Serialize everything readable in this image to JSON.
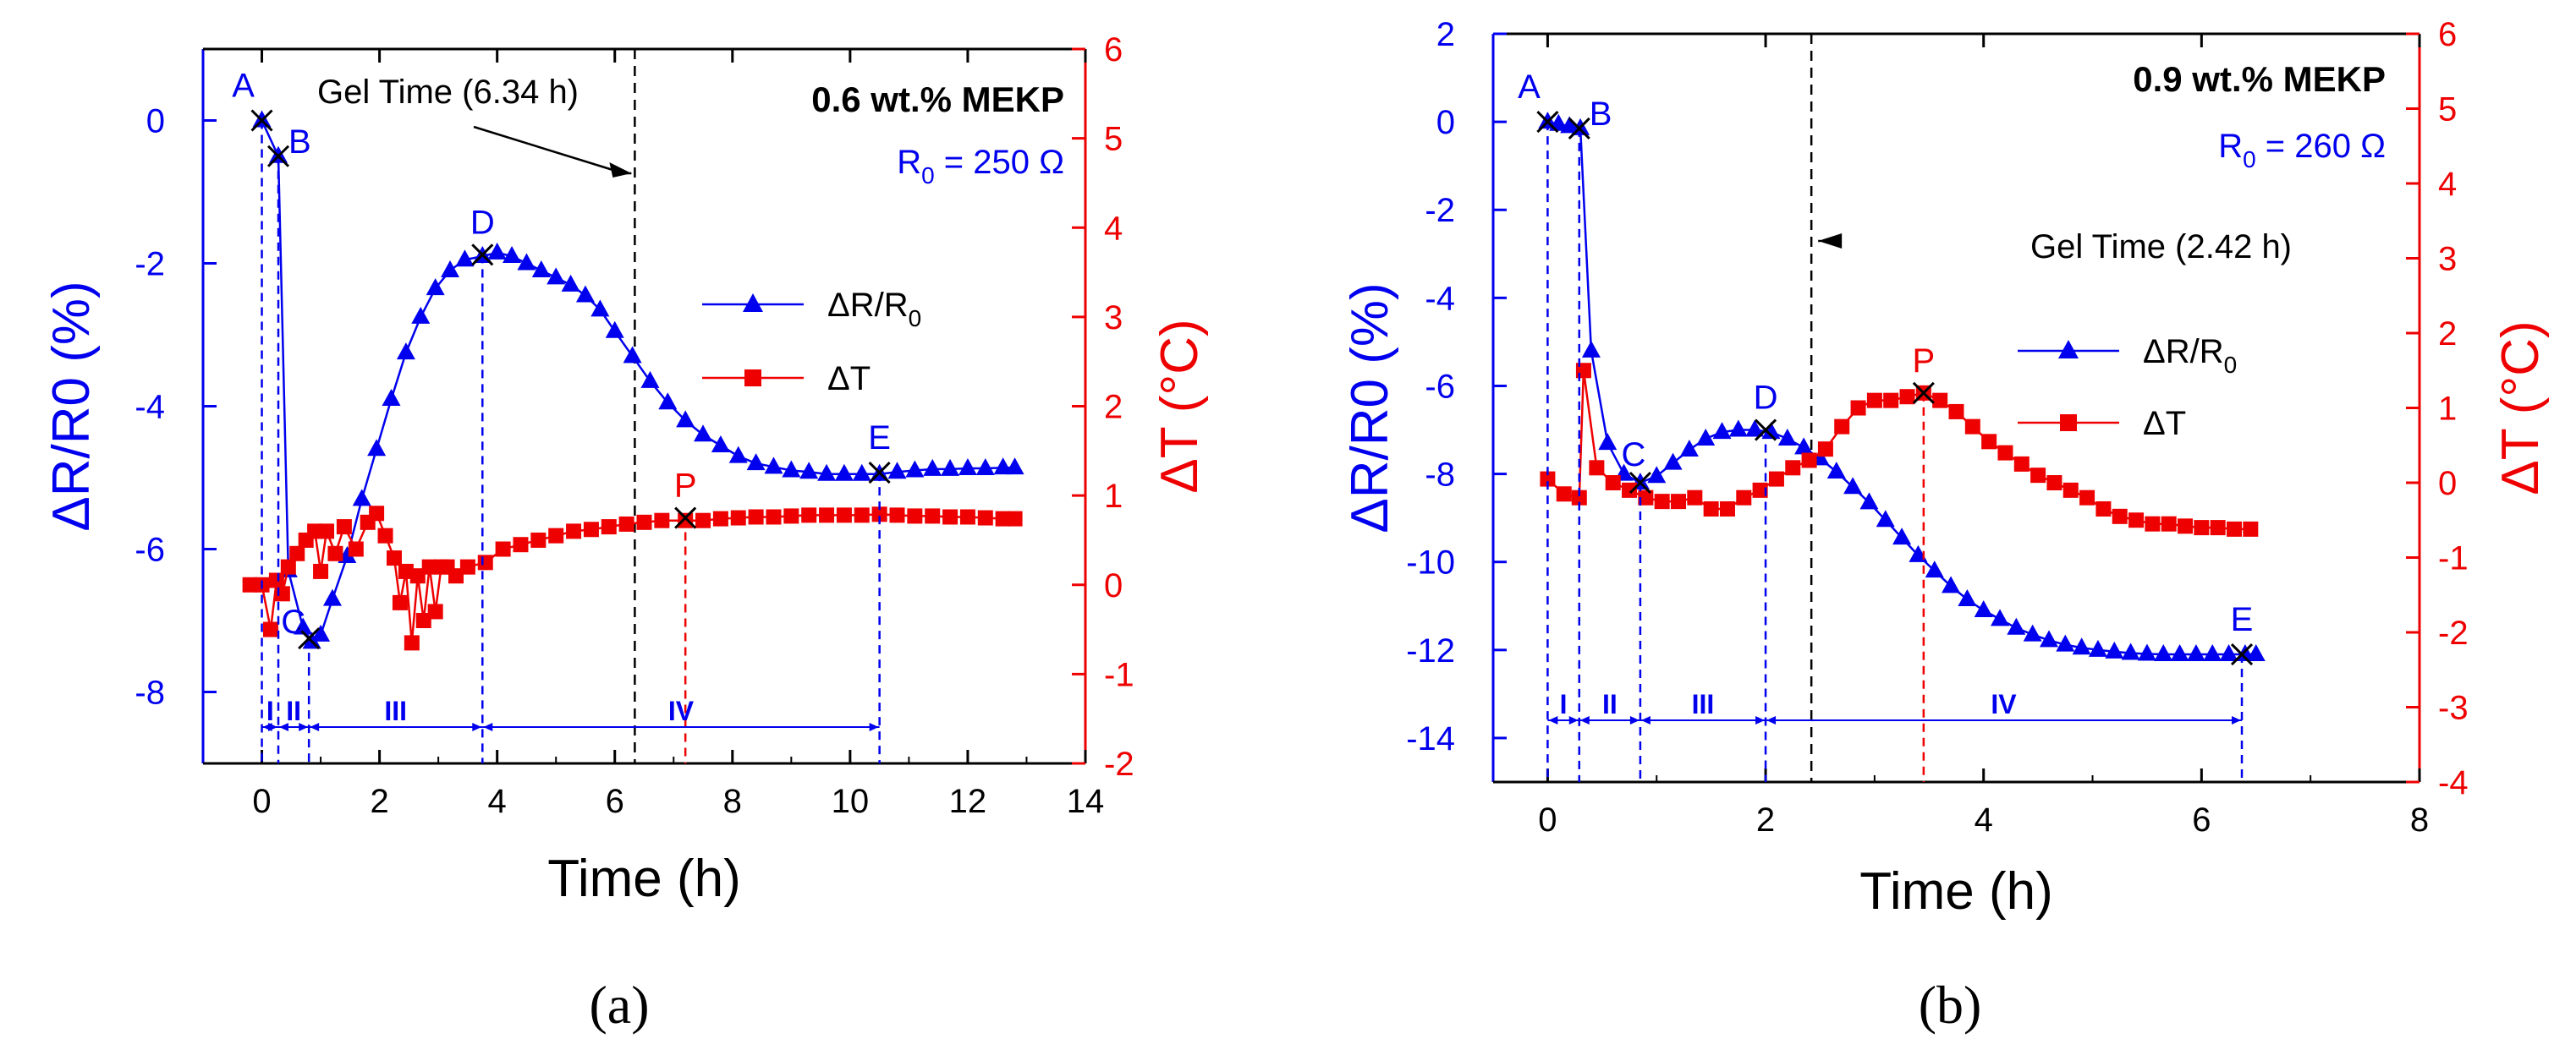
{
  "chart_data": [
    {
      "panel": "a",
      "type": "line",
      "panel_label": "(a)",
      "xlabel": "Time (h)",
      "ylabel_left": "ΔR/R0 (%)",
      "ylabel_right": "ΔT (°C)",
      "xlim": [
        -1,
        14
      ],
      "ylim_left": [
        -9,
        1
      ],
      "ylim_right": [
        -2,
        6
      ],
      "xticks": [
        0,
        2,
        4,
        6,
        8,
        10,
        12,
        14
      ],
      "yticks_left": [
        -8,
        -6,
        -4,
        -2,
        0
      ],
      "yticks_right": [
        -2,
        -1,
        0,
        1,
        2,
        3,
        4,
        5,
        6
      ],
      "annotation_title": "0.6 wt.% MEKP",
      "annotation_r0_label": "R",
      "annotation_r0_sub": "0",
      "annotation_r0_value": " = 250 Ω",
      "gel_time_label": "Gel Time (6.34 h)",
      "gel_time": 6.34,
      "legend_position": "center-right",
      "series": [
        {
          "name": "ΔR/R0",
          "axis": "left",
          "color": "#0000ee",
          "marker": "triangle",
          "x": [
            0,
            0.28,
            0.45,
            0.7,
            0.85,
            1.0,
            1.2,
            1.45,
            1.7,
            1.95,
            2.2,
            2.45,
            2.7,
            2.95,
            3.2,
            3.45,
            3.75,
            4.0,
            4.25,
            4.5,
            4.75,
            5.0,
            5.25,
            5.5,
            5.75,
            6.0,
            6.3,
            6.6,
            6.9,
            7.2,
            7.5,
            7.8,
            8.1,
            8.4,
            8.7,
            9.0,
            9.3,
            9.6,
            9.9,
            10.2,
            10.5,
            10.8,
            11.1,
            11.4,
            11.7,
            12.0,
            12.3,
            12.6,
            12.8
          ],
          "y": [
            0,
            -0.5,
            -6.3,
            -7.1,
            -7.3,
            -7.2,
            -6.7,
            -6.1,
            -5.3,
            -4.6,
            -3.9,
            -3.25,
            -2.75,
            -2.35,
            -2.1,
            -1.95,
            -1.9,
            -1.85,
            -1.9,
            -2.0,
            -2.1,
            -2.2,
            -2.3,
            -2.45,
            -2.65,
            -2.95,
            -3.3,
            -3.65,
            -3.95,
            -4.2,
            -4.4,
            -4.55,
            -4.7,
            -4.8,
            -4.85,
            -4.9,
            -4.92,
            -4.95,
            -4.95,
            -4.95,
            -4.95,
            -4.92,
            -4.9,
            -4.88,
            -4.88,
            -4.87,
            -4.87,
            -4.86,
            -4.86
          ]
        },
        {
          "name": "ΔT",
          "axis": "right",
          "color": "#ee0000",
          "marker": "square",
          "x": [
            -0.2,
            0,
            0.15,
            0.25,
            0.35,
            0.45,
            0.6,
            0.75,
            0.9,
            1.0,
            1.1,
            1.25,
            1.4,
            1.6,
            1.8,
            1.95,
            2.1,
            2.25,
            2.35,
            2.45,
            2.55,
            2.65,
            2.75,
            2.85,
            2.95,
            3.05,
            3.15,
            3.3,
            3.5,
            3.8,
            4.1,
            4.4,
            4.7,
            5.0,
            5.3,
            5.6,
            5.9,
            6.2,
            6.5,
            6.8,
            7.2,
            7.5,
            7.8,
            8.1,
            8.4,
            8.7,
            9.0,
            9.3,
            9.6,
            9.9,
            10.2,
            10.5,
            10.8,
            11.1,
            11.4,
            11.7,
            12.0,
            12.3,
            12.6,
            12.8
          ],
          "y": [
            0.0,
            0.0,
            -0.5,
            0.05,
            -0.1,
            0.2,
            0.35,
            0.5,
            0.6,
            0.15,
            0.6,
            0.35,
            0.65,
            0.4,
            0.7,
            0.8,
            0.55,
            0.3,
            -0.2,
            0.15,
            -0.65,
            0.1,
            -0.4,
            0.2,
            -0.3,
            0.2,
            0.2,
            0.1,
            0.2,
            0.25,
            0.4,
            0.45,
            0.5,
            0.55,
            0.6,
            0.62,
            0.65,
            0.68,
            0.7,
            0.72,
            0.72,
            0.72,
            0.74,
            0.75,
            0.76,
            0.76,
            0.77,
            0.78,
            0.78,
            0.78,
            0.78,
            0.79,
            0.78,
            0.77,
            0.77,
            0.76,
            0.76,
            0.75,
            0.74,
            0.74
          ]
        }
      ],
      "points": [
        {
          "label": "A",
          "x": 0,
          "y": 0,
          "axis": "left"
        },
        {
          "label": "B",
          "x": 0.28,
          "y": -0.5,
          "axis": "left"
        },
        {
          "label": "C",
          "x": 0.8,
          "y": -7.25,
          "axis": "left"
        },
        {
          "label": "D",
          "x": 3.75,
          "y": -1.88,
          "axis": "left"
        },
        {
          "label": "E",
          "x": 10.5,
          "y": -4.93,
          "axis": "left"
        },
        {
          "label": "P",
          "x": 7.2,
          "y": 0.75,
          "axis": "right"
        }
      ],
      "regions": [
        {
          "label": "I",
          "from": 0,
          "to": 0.28
        },
        {
          "label": "II",
          "from": 0.28,
          "to": 0.8
        },
        {
          "label": "III",
          "from": 0.8,
          "to": 3.75
        },
        {
          "label": "IV",
          "from": 3.75,
          "to": 10.5
        }
      ]
    },
    {
      "panel": "b",
      "type": "line",
      "panel_label": "(b)",
      "xlabel": "Time (h)",
      "ylabel_left": "ΔR/R0 (%)",
      "ylabel_right": "ΔT (°C)",
      "xlim": [
        -0.5,
        8
      ],
      "ylim_left": [
        -15,
        2
      ],
      "ylim_right": [
        -4,
        6
      ],
      "xticks": [
        0,
        2,
        4,
        6,
        8
      ],
      "yticks_left": [
        -14,
        -12,
        -10,
        -8,
        -6,
        -4,
        -2,
        0,
        2
      ],
      "yticks_right": [
        -4,
        -3,
        -2,
        -1,
        0,
        1,
        2,
        3,
        4,
        5,
        6
      ],
      "annotation_title": "0.9 wt.% MEKP",
      "annotation_r0_label": "R",
      "annotation_r0_sub": "0",
      "annotation_r0_value": " = 260 Ω",
      "gel_time_label": "Gel Time (2.42 h)",
      "gel_time": 2.42,
      "legend_position": "center-right",
      "series": [
        {
          "name": "ΔR/R0",
          "axis": "left",
          "color": "#0000ee",
          "marker": "triangle",
          "x": [
            0,
            0.1,
            0.2,
            0.3,
            0.4,
            0.55,
            0.7,
            0.85,
            1.0,
            1.15,
            1.3,
            1.45,
            1.6,
            1.75,
            1.9,
            2.05,
            2.2,
            2.35,
            2.5,
            2.65,
            2.8,
            2.95,
            3.1,
            3.25,
            3.4,
            3.55,
            3.7,
            3.85,
            4.0,
            4.15,
            4.3,
            4.45,
            4.6,
            4.75,
            4.9,
            5.05,
            5.2,
            5.35,
            5.5,
            5.65,
            5.8,
            5.95,
            6.1,
            6.25,
            6.4,
            6.5
          ],
          "y": [
            0,
            -0.05,
            -0.1,
            -0.15,
            -5.2,
            -7.3,
            -8.0,
            -8.2,
            -8.05,
            -7.75,
            -7.45,
            -7.2,
            -7.05,
            -7.0,
            -7.0,
            -7.05,
            -7.2,
            -7.4,
            -7.65,
            -7.95,
            -8.3,
            -8.65,
            -9.05,
            -9.45,
            -9.85,
            -10.2,
            -10.55,
            -10.85,
            -11.1,
            -11.3,
            -11.5,
            -11.65,
            -11.78,
            -11.88,
            -11.95,
            -12.0,
            -12.04,
            -12.07,
            -12.09,
            -12.1,
            -12.1,
            -12.1,
            -12.1,
            -12.1,
            -12.1,
            -12.1
          ]
        },
        {
          "name": "ΔT",
          "axis": "right",
          "color": "#ee0000",
          "marker": "square",
          "x": [
            0,
            0.15,
            0.29,
            0.33,
            0.45,
            0.6,
            0.75,
            0.9,
            1.05,
            1.2,
            1.35,
            1.5,
            1.65,
            1.8,
            1.95,
            2.1,
            2.25,
            2.4,
            2.55,
            2.7,
            2.85,
            3.0,
            3.15,
            3.3,
            3.45,
            3.6,
            3.75,
            3.9,
            4.05,
            4.2,
            4.35,
            4.5,
            4.65,
            4.8,
            4.95,
            5.1,
            5.25,
            5.4,
            5.55,
            5.7,
            5.85,
            6.0,
            6.15,
            6.3,
            6.45
          ],
          "y": [
            0.05,
            -0.15,
            -0.2,
            1.5,
            0.2,
            0.0,
            -0.1,
            -0.2,
            -0.25,
            -0.25,
            -0.2,
            -0.35,
            -0.35,
            -0.2,
            -0.1,
            0.05,
            0.2,
            0.3,
            0.45,
            0.75,
            1.0,
            1.1,
            1.1,
            1.15,
            1.2,
            1.1,
            0.95,
            0.75,
            0.55,
            0.4,
            0.25,
            0.1,
            0.0,
            -0.1,
            -0.2,
            -0.35,
            -0.45,
            -0.5,
            -0.55,
            -0.55,
            -0.58,
            -0.6,
            -0.6,
            -0.62,
            -0.62
          ]
        }
      ],
      "points": [
        {
          "label": "A",
          "x": 0,
          "y": 0,
          "axis": "left"
        },
        {
          "label": "B",
          "x": 0.29,
          "y": -0.15,
          "axis": "left"
        },
        {
          "label": "C",
          "x": 0.85,
          "y": -8.2,
          "axis": "left"
        },
        {
          "label": "D",
          "x": 2.0,
          "y": -7.0,
          "axis": "left"
        },
        {
          "label": "E",
          "x": 6.37,
          "y": -12.1,
          "axis": "left"
        },
        {
          "label": "P",
          "x": 3.45,
          "y": 1.2,
          "axis": "right"
        }
      ],
      "regions": [
        {
          "label": "I",
          "from": 0,
          "to": 0.29
        },
        {
          "label": "II",
          "from": 0.29,
          "to": 0.85
        },
        {
          "label": "III",
          "from": 0.85,
          "to": 2.0
        },
        {
          "label": "IV",
          "from": 2.0,
          "to": 6.37
        }
      ]
    }
  ]
}
